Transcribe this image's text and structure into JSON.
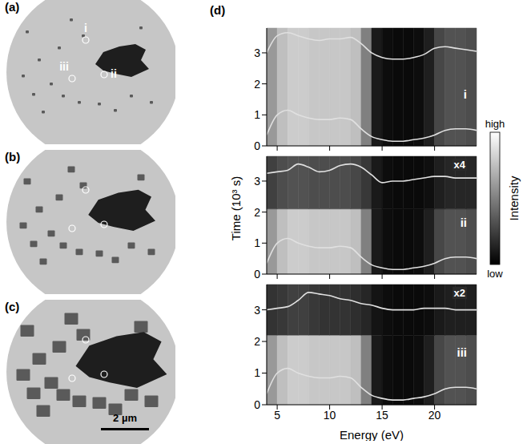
{
  "images": [
    {
      "label": "(a)",
      "markers": [
        "i",
        "ii",
        "iii"
      ]
    },
    {
      "label": "(b)",
      "markers": [
        null,
        null,
        null
      ]
    },
    {
      "label": "(c)",
      "markers": [
        null,
        null,
        null
      ],
      "scale_bar": "2 µm"
    }
  ],
  "chart_data": {
    "type": "heatmap",
    "label": "(d)",
    "xlabel": "Energy (eV)",
    "ylabel": "Time (10³ s)",
    "xlim": [
      4,
      24
    ],
    "xticks": [
      5,
      10,
      15,
      20
    ],
    "ylim": [
      0,
      3.8
    ],
    "yticks": [
      0,
      1,
      2,
      3
    ],
    "energy_bins": [
      4,
      5,
      6,
      7,
      8,
      9,
      10,
      11,
      12,
      13,
      14,
      15,
      16,
      17,
      18,
      19,
      20,
      21,
      22,
      23,
      24
    ],
    "colorbar": {
      "label": "Intensity",
      "range": [
        0,
        1
      ],
      "ticks": [
        {
          "value": 1,
          "label": "high"
        },
        {
          "value": 0,
          "label": "low"
        }
      ]
    },
    "panels": [
      {
        "name": "i",
        "tick_labels": "y",
        "time_bins": [
          0,
          3.8
        ],
        "cells": [
          [
            0.6,
            0.75,
            0.8,
            0.8,
            0.78,
            0.78,
            0.78,
            0.78,
            0.75,
            0.5,
            0.1,
            0.05,
            0.04,
            0.04,
            0.05,
            0.12,
            0.28,
            0.32,
            0.32,
            0.3
          ]
        ],
        "spectra": [
          {
            "color": "#e0e0e0",
            "x": [
              4,
              5,
              6,
              7,
              8,
              9,
              10,
              11,
              12,
              13,
              14,
              15,
              16,
              17,
              18,
              19,
              20,
              21,
              22,
              23,
              24
            ],
            "y": [
              0.35,
              1.0,
              1.15,
              1.0,
              0.9,
              0.85,
              0.85,
              0.9,
              0.85,
              0.55,
              0.3,
              0.2,
              0.15,
              0.15,
              0.2,
              0.25,
              0.35,
              0.5,
              0.55,
              0.55,
              0.5
            ]
          },
          {
            "color": "#e0e0e0",
            "x": [
              4,
              5,
              6,
              7,
              8,
              9,
              10,
              11,
              12,
              13,
              14,
              15,
              16,
              17,
              18,
              19,
              20,
              21,
              22,
              23,
              24
            ],
            "y": [
              3.0,
              3.55,
              3.65,
              3.55,
              3.45,
              3.4,
              3.45,
              3.45,
              3.5,
              3.3,
              3.0,
              2.85,
              2.8,
              2.8,
              2.85,
              2.95,
              3.15,
              3.2,
              3.15,
              3.1,
              3.05
            ]
          }
        ]
      },
      {
        "name": "ii",
        "tick_labels": "y",
        "time_bins": [
          0,
          2.1,
          3.8
        ],
        "cells": [
          [
            0.6,
            0.75,
            0.8,
            0.8,
            0.78,
            0.78,
            0.78,
            0.78,
            0.75,
            0.5,
            0.1,
            0.05,
            0.04,
            0.04,
            0.05,
            0.12,
            0.28,
            0.32,
            0.32,
            0.3
          ],
          [
            0.25,
            0.3,
            0.32,
            0.32,
            0.3,
            0.3,
            0.3,
            0.3,
            0.28,
            0.22,
            0.1,
            0.05,
            0.04,
            0.04,
            0.04,
            0.06,
            0.12,
            0.15,
            0.15,
            0.15
          ]
        ],
        "spectra": [
          {
            "color": "#e0e0e0",
            "x": [
              4,
              5,
              6,
              7,
              8,
              9,
              10,
              11,
              12,
              13,
              14,
              15,
              16,
              17,
              18,
              19,
              20,
              21,
              22,
              23,
              24
            ],
            "y": [
              0.35,
              1.0,
              1.15,
              1.0,
              0.9,
              0.85,
              0.85,
              0.9,
              0.85,
              0.55,
              0.3,
              0.2,
              0.15,
              0.15,
              0.2,
              0.25,
              0.35,
              0.5,
              0.55,
              0.55,
              0.5
            ]
          },
          {
            "color": "#e0e0e0",
            "scale_label": "x4",
            "x": [
              4,
              5,
              6,
              7,
              8,
              9,
              10,
              11,
              12,
              13,
              14,
              15,
              16,
              17,
              18,
              19,
              20,
              21,
              22,
              23,
              24
            ],
            "y": [
              3.25,
              3.3,
              3.35,
              3.55,
              3.45,
              3.3,
              3.35,
              3.5,
              3.55,
              3.45,
              3.2,
              2.95,
              3.0,
              3.0,
              3.05,
              3.1,
              3.15,
              3.15,
              3.1,
              3.1,
              3.1
            ]
          }
        ]
      },
      {
        "name": "iii",
        "time_bins": [
          0,
          2.2,
          3.8
        ],
        "cells": [
          [
            0.6,
            0.75,
            0.8,
            0.8,
            0.78,
            0.78,
            0.78,
            0.78,
            0.75,
            0.5,
            0.1,
            0.05,
            0.04,
            0.04,
            0.05,
            0.12,
            0.28,
            0.32,
            0.32,
            0.3
          ],
          [
            0.2,
            0.22,
            0.25,
            0.25,
            0.22,
            0.2,
            0.2,
            0.2,
            0.18,
            0.15,
            0.08,
            0.05,
            0.04,
            0.04,
            0.04,
            0.05,
            0.1,
            0.12,
            0.12,
            0.12
          ]
        ],
        "spectra": [
          {
            "color": "#e0e0e0",
            "x": [
              4,
              5,
              6,
              7,
              8,
              9,
              10,
              11,
              12,
              13,
              14,
              15,
              16,
              17,
              18,
              19,
              20,
              21,
              22,
              23,
              24
            ],
            "y": [
              0.35,
              1.0,
              1.15,
              1.0,
              0.9,
              0.85,
              0.85,
              0.9,
              0.85,
              0.55,
              0.3,
              0.2,
              0.15,
              0.15,
              0.2,
              0.25,
              0.35,
              0.5,
              0.55,
              0.55,
              0.5
            ]
          },
          {
            "color": "#e0e0e0",
            "scale_label": "x2",
            "x": [
              4,
              5,
              6,
              7,
              8,
              9,
              10,
              11,
              12,
              13,
              14,
              15,
              16,
              17,
              18,
              19,
              20,
              21,
              22,
              23,
              24
            ],
            "y": [
              3.0,
              3.05,
              3.1,
              3.3,
              3.55,
              3.5,
              3.45,
              3.35,
              3.3,
              3.2,
              3.15,
              3.05,
              3.0,
              3.0,
              3.0,
              3.05,
              3.05,
              3.05,
              3.0,
              3.0,
              3.0
            ]
          }
        ]
      }
    ]
  }
}
